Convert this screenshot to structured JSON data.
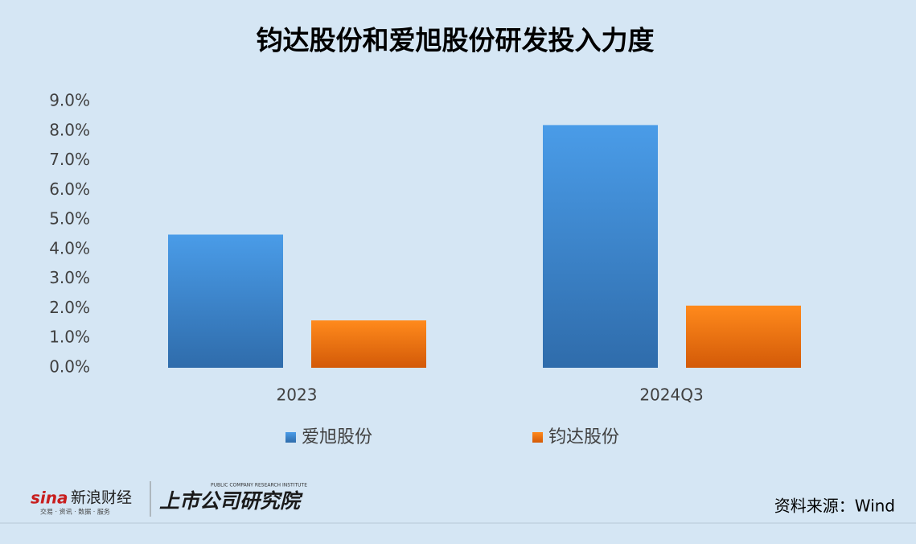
{
  "chart_data": {
    "type": "bar",
    "title": "钧达股份和爱旭股份研发投入力度",
    "categories": [
      "2023",
      "2024Q3"
    ],
    "series": [
      {
        "name": "爱旭股份",
        "color": "#3b8ad8",
        "values": [
          4.5,
          8.2
        ]
      },
      {
        "name": "钧达股份",
        "color": "#f0750f",
        "values": [
          1.6,
          2.1
        ]
      }
    ],
    "ylim": [
      0,
      9
    ],
    "yticks": [
      {
        "value": 0,
        "label": "0.0%"
      },
      {
        "value": 1,
        "label": "1.0%"
      },
      {
        "value": 2,
        "label": "2.0%"
      },
      {
        "value": 3,
        "label": "3.0%"
      },
      {
        "value": 4,
        "label": "4.0%"
      },
      {
        "value": 5,
        "label": "5.0%"
      },
      {
        "value": 6,
        "label": "6.0%"
      },
      {
        "value": 7,
        "label": "7.0%"
      },
      {
        "value": 8,
        "label": "8.0%"
      },
      {
        "value": 9,
        "label": "9.0%"
      }
    ],
    "grid": false,
    "legend": "bottom",
    "source": "资料来源：Wind"
  },
  "footer": {
    "brand": "新浪财经",
    "brand_sub": "交易 · 资讯 · 数据 · 服务",
    "institute": "上市公司研究院",
    "institute_en": "PUBLIC COMPANY RESEARCH INSTITUTE"
  }
}
